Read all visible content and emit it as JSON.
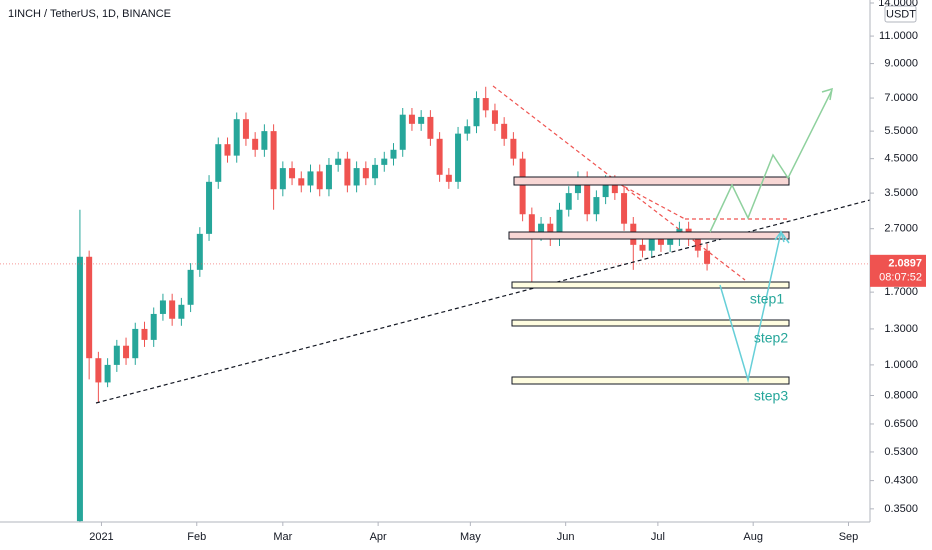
{
  "chart_data": {
    "type": "candlestick",
    "title": "1INCH / TetherUS, 1D, BINANCE",
    "unit": "USDT",
    "countdown": "08:07:52",
    "log_scale": true,
    "grid": false,
    "up_color": "#26a69a",
    "down_color": "#ef5350",
    "annotations": [
      "step1",
      "step2",
      "step3"
    ],
    "xlim": [
      -33,
      250
    ],
    "xticks": [
      {
        "value": 0,
        "label": "2021"
      },
      {
        "value": 31,
        "label": "Feb"
      },
      {
        "value": 59,
        "label": "Mar"
      },
      {
        "value": 90,
        "label": "Apr"
      },
      {
        "value": 120,
        "label": "May"
      },
      {
        "value": 151,
        "label": "Jun"
      },
      {
        "value": 181,
        "label": "Jul"
      },
      {
        "value": 212,
        "label": "Aug"
      },
      {
        "value": 243,
        "label": "Sep"
      }
    ],
    "ylim": [
      0.318,
      14.31
    ],
    "yticks": [
      {
        "value": 14,
        "label": "14.0000"
      },
      {
        "value": 11,
        "label": "11.0000"
      },
      {
        "value": 9,
        "label": "9.0000"
      },
      {
        "value": 7,
        "label": "7.0000"
      },
      {
        "value": 5.5,
        "label": "5.5000"
      },
      {
        "value": 4.5,
        "label": "4.5000"
      },
      {
        "value": 3.5,
        "label": "3.5000"
      },
      {
        "value": 2.7,
        "label": "2.7000"
      },
      {
        "value": 1.7,
        "label": "1.7000"
      },
      {
        "value": 1.3,
        "label": "1.3000"
      },
      {
        "value": 1,
        "label": "1.0000"
      },
      {
        "value": 0.8,
        "label": "0.8000"
      },
      {
        "value": 0.65,
        "label": "0.6500"
      },
      {
        "value": 0.53,
        "label": "0.5300"
      },
      {
        "value": 0.43,
        "label": "0.4300"
      },
      {
        "value": 0.35,
        "label": "0.3500"
      }
    ],
    "series": [
      {
        "name": "1INCH / TetherUS",
        "x": [
          -7,
          -4,
          -1,
          2,
          5,
          8,
          11,
          14,
          17,
          20,
          23,
          26,
          29,
          32,
          35,
          38,
          41,
          44,
          47,
          50,
          53,
          56,
          59,
          62,
          65,
          68,
          71,
          74,
          77,
          80,
          83,
          86,
          89,
          92,
          95,
          98,
          101,
          104,
          107,
          110,
          113,
          116,
          119,
          122,
          125,
          128,
          131,
          134,
          137,
          140,
          143,
          146,
          149,
          152,
          155,
          158,
          161,
          164,
          167,
          170,
          173,
          176,
          179,
          182,
          185,
          188,
          191,
          194,
          197
        ],
        "open": [
          0.32,
          2.2,
          1.05,
          0.88,
          1.0,
          1.15,
          1.05,
          1.3,
          1.2,
          1.45,
          1.6,
          1.4,
          1.55,
          2.0,
          2.6,
          3.8,
          5.0,
          4.6,
          6.0,
          5.2,
          4.8,
          5.5,
          3.6,
          4.2,
          3.9,
          3.7,
          4.1,
          3.6,
          4.3,
          4.5,
          3.7,
          4.2,
          3.9,
          4.3,
          4.5,
          4.8,
          6.2,
          5.8,
          6.1,
          5.2,
          4.0,
          3.8,
          5.4,
          5.7,
          7.0,
          6.4,
          5.8,
          5.2,
          4.5,
          3.0,
          2.6,
          2.8,
          2.5,
          3.1,
          3.5,
          3.9,
          3.0,
          3.4,
          3.8,
          3.5,
          2.8,
          2.4,
          2.3,
          2.5,
          2.4,
          2.5,
          2.7,
          2.5,
          2.3
        ],
        "high": [
          3.1,
          2.3,
          1.1,
          1.05,
          1.2,
          1.22,
          1.36,
          1.37,
          1.52,
          1.68,
          1.68,
          1.63,
          2.1,
          2.73,
          3.99,
          5.25,
          5.25,
          6.3,
          6.3,
          5.46,
          5.78,
          5.78,
          4.41,
          4.41,
          4.1,
          4.31,
          4.31,
          4.52,
          4.73,
          4.73,
          4.41,
          4.41,
          4.52,
          4.73,
          5.04,
          6.51,
          6.51,
          6.41,
          6.41,
          5.46,
          4.2,
          5.67,
          5.99,
          7.35,
          7.6,
          6.72,
          6.09,
          5.46,
          4.73,
          3.15,
          2.94,
          2.94,
          3.26,
          3.68,
          4.1,
          4.1,
          3.57,
          3.99,
          3.99,
          3.68,
          2.94,
          2.52,
          2.63,
          2.63,
          2.63,
          2.84,
          2.84,
          2.63,
          2.42
        ],
        "low": [
          0.318,
          0.9,
          0.76,
          0.85,
          0.95,
          1.0,
          1.0,
          1.14,
          1.14,
          1.38,
          1.33,
          1.33,
          1.47,
          1.9,
          2.47,
          3.61,
          4.37,
          4.37,
          4.94,
          4.56,
          4.56,
          3.1,
          3.42,
          3.71,
          3.52,
          3.52,
          3.42,
          3.42,
          4.09,
          3.52,
          3.52,
          3.71,
          3.71,
          4.09,
          4.28,
          4.56,
          5.51,
          5.51,
          4.94,
          3.8,
          3.61,
          3.61,
          5.13,
          5.42,
          6.08,
          5.51,
          4.94,
          4.28,
          2.85,
          1.8,
          2.47,
          2.38,
          2.38,
          2.95,
          3.33,
          2.85,
          2.85,
          3.23,
          3.33,
          2.66,
          2.0,
          2.19,
          2.19,
          2.28,
          2.28,
          2.38,
          2.38,
          2.19,
          1.99
        ],
        "close": [
          2.2,
          1.05,
          0.88,
          1.0,
          1.15,
          1.05,
          1.3,
          1.2,
          1.45,
          1.6,
          1.4,
          1.55,
          2.0,
          2.6,
          3.8,
          5.0,
          4.6,
          6.0,
          5.2,
          4.8,
          5.5,
          3.6,
          4.2,
          3.9,
          3.7,
          4.1,
          3.6,
          4.3,
          4.5,
          3.7,
          4.2,
          3.9,
          4.3,
          4.5,
          4.8,
          6.2,
          5.8,
          6.1,
          5.2,
          4.0,
          3.8,
          5.4,
          5.7,
          7.0,
          6.4,
          5.8,
          5.2,
          4.5,
          3.0,
          2.6,
          2.8,
          2.5,
          3.1,
          3.5,
          3.9,
          3.0,
          3.4,
          3.8,
          3.5,
          2.8,
          2.4,
          2.3,
          2.5,
          2.4,
          2.5,
          2.7,
          2.5,
          2.3,
          2.0897
        ]
      }
    ]
  }
}
